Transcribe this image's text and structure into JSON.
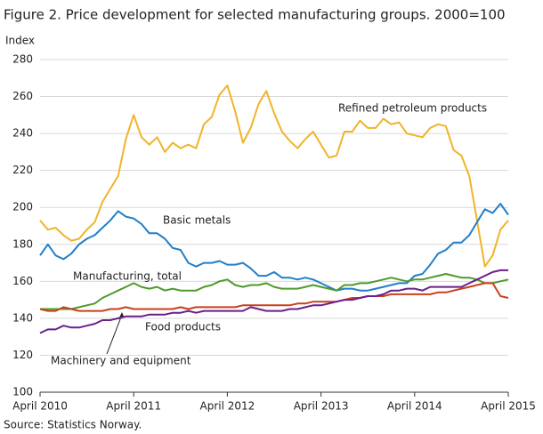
{
  "chart_data": {
    "type": "line",
    "title": "Figure 2. Price development for selected manufacturing groups. 2000=100",
    "y_label": "Index",
    "source": "Source: Statistics Norway.",
    "categories": [
      "April 2010",
      null,
      null,
      null,
      null,
      null,
      null,
      null,
      null,
      null,
      null,
      null,
      "April 2011",
      null,
      null,
      null,
      null,
      null,
      null,
      null,
      null,
      null,
      null,
      null,
      "April 2012",
      null,
      null,
      null,
      null,
      null,
      null,
      null,
      null,
      null,
      null,
      null,
      "April 2013",
      null,
      null,
      null,
      null,
      null,
      null,
      null,
      null,
      null,
      null,
      null,
      "April 2014",
      null,
      null,
      null,
      null,
      null,
      null,
      null,
      null,
      null,
      null,
      null,
      "April 2015"
    ],
    "ylim": [
      100,
      280
    ],
    "yticks": [
      100,
      120,
      140,
      160,
      180,
      200,
      220,
      240,
      260,
      280
    ],
    "grid": true,
    "series": [
      {
        "name": "Refined petroleum products",
        "color": "#f0b429",
        "values": [
          193,
          188,
          189,
          185,
          182,
          183,
          188,
          192,
          203,
          210,
          217,
          237,
          250,
          238,
          234,
          238,
          230,
          235,
          232,
          234,
          232,
          245,
          249,
          261,
          266,
          252,
          235,
          243,
          256,
          263,
          251,
          241,
          236,
          232,
          237,
          241,
          234,
          227,
          228,
          241,
          241,
          247,
          243,
          243,
          248,
          245,
          246,
          240,
          239,
          238,
          243,
          245,
          244,
          231,
          228,
          217,
          193,
          168,
          174,
          188,
          193
        ]
      },
      {
        "name": "Basic metals",
        "color": "#1f7fc8",
        "values": [
          174,
          180,
          174,
          172,
          175,
          180,
          183,
          185,
          189,
          193,
          198,
          195,
          194,
          191,
          186,
          186,
          183,
          178,
          177,
          170,
          168,
          170,
          170,
          171,
          169,
          169,
          170,
          167,
          163,
          163,
          165,
          162,
          162,
          161,
          162,
          161,
          159,
          157,
          155,
          156,
          156,
          155,
          155,
          156,
          157,
          158,
          159,
          159,
          163,
          164,
          169,
          175,
          177,
          181,
          181,
          185,
          192,
          199,
          197,
          202,
          196
        ]
      },
      {
        "name": "Manufacturing,  total",
        "color": "#4f9a2a",
        "values": [
          145,
          145,
          145,
          145,
          145,
          146,
          147,
          148,
          151,
          153,
          155,
          157,
          159,
          157,
          156,
          157,
          155,
          156,
          155,
          155,
          155,
          157,
          158,
          160,
          161,
          158,
          157,
          158,
          158,
          159,
          157,
          156,
          156,
          156,
          157,
          158,
          157,
          156,
          155,
          158,
          158,
          159,
          159,
          160,
          161,
          162,
          161,
          160,
          161,
          161,
          162,
          163,
          164,
          163,
          162,
          162,
          161,
          159,
          159,
          160,
          161
        ]
      },
      {
        "name": "Food products",
        "color": "#c7411c",
        "values": [
          145,
          144,
          144,
          146,
          145,
          144,
          144,
          144,
          144,
          145,
          145,
          146,
          145,
          145,
          145,
          145,
          145,
          145,
          146,
          145,
          146,
          146,
          146,
          146,
          146,
          146,
          147,
          147,
          147,
          147,
          147,
          147,
          147,
          148,
          148,
          149,
          149,
          149,
          149,
          150,
          151,
          151,
          152,
          152,
          152,
          153,
          153,
          153,
          153,
          153,
          153,
          154,
          154,
          155,
          156,
          157,
          158,
          159,
          159,
          152,
          151
        ]
      },
      {
        "name": "Machinery  and equipment",
        "color": "#6a1f8c",
        "values": [
          132,
          134,
          134,
          136,
          135,
          135,
          136,
          137,
          139,
          139,
          140,
          141,
          141,
          141,
          142,
          142,
          142,
          143,
          143,
          144,
          143,
          144,
          144,
          144,
          144,
          144,
          144,
          146,
          145,
          144,
          144,
          144,
          145,
          145,
          146,
          147,
          147,
          148,
          149,
          150,
          150,
          151,
          152,
          152,
          153,
          155,
          155,
          156,
          156,
          155,
          157,
          157,
          157,
          157,
          157,
          159,
          161,
          163,
          165,
          166,
          166
        ]
      }
    ]
  }
}
